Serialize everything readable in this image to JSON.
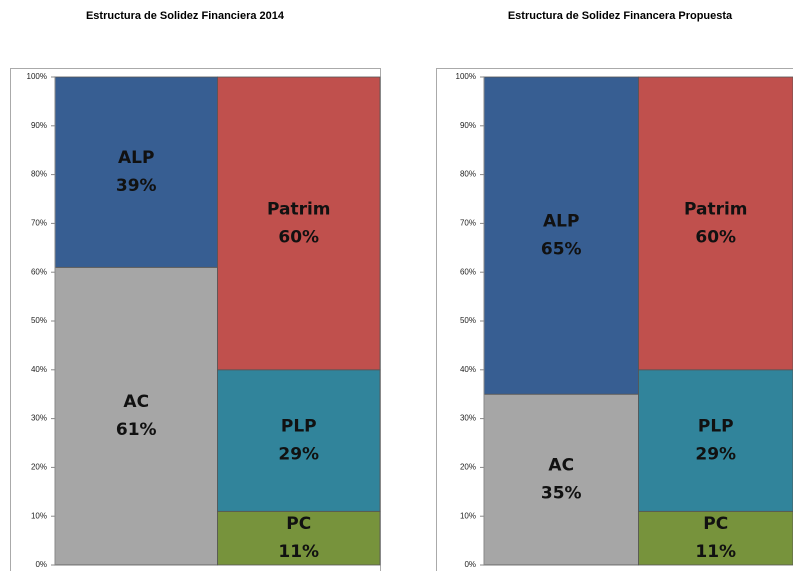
{
  "chart_data": [
    {
      "type": "bar",
      "stacked": true,
      "title": "Estructura de Solidez Financiera 2014",
      "categories": [
        null,
        null
      ],
      "ylim": [
        0,
        100
      ],
      "yticks": [
        {
          "value": 0,
          "label": "0%"
        },
        {
          "value": 10,
          "label": "10%"
        },
        {
          "value": 20,
          "label": "20%"
        },
        {
          "value": 30,
          "label": "30%"
        },
        {
          "value": 40,
          "label": "40%"
        },
        {
          "value": 50,
          "label": "50%"
        },
        {
          "value": 60,
          "label": "60%"
        },
        {
          "value": 70,
          "label": "70%"
        },
        {
          "value": 80,
          "label": "80%"
        },
        {
          "value": 90,
          "label": "90%"
        },
        {
          "value": 100,
          "label": "100%"
        }
      ],
      "series": [
        {
          "name": "AC",
          "color": "#a6a6a6",
          "values": [
            61,
            null
          ],
          "value_labels": [
            "61%",
            null
          ]
        },
        {
          "name": "ALP",
          "color": "#375e92",
          "values": [
            39,
            null
          ],
          "value_labels": [
            "39%",
            null
          ]
        },
        {
          "name": "PC",
          "color": "#77933c",
          "values": [
            null,
            11
          ],
          "value_labels": [
            null,
            "11%"
          ]
        },
        {
          "name": "PLP",
          "color": "#31849b",
          "values": [
            null,
            29
          ],
          "value_labels": [
            null,
            "29%"
          ]
        },
        {
          "name": "Patrim",
          "color": "#c0504d",
          "values": [
            null,
            60
          ],
          "value_labels": [
            null,
            "60%"
          ]
        }
      ]
    },
    {
      "type": "bar",
      "stacked": true,
      "title": "Estructura de Solidez Financera Propuesta",
      "categories": [
        null,
        null
      ],
      "ylim": [
        0,
        100
      ],
      "yticks": [
        {
          "value": 0,
          "label": "0%"
        },
        {
          "value": 10,
          "label": "10%"
        },
        {
          "value": 20,
          "label": "20%"
        },
        {
          "value": 30,
          "label": "30%"
        },
        {
          "value": 40,
          "label": "40%"
        },
        {
          "value": 50,
          "label": "50%"
        },
        {
          "value": 60,
          "label": "60%"
        },
        {
          "value": 70,
          "label": "70%"
        },
        {
          "value": 80,
          "label": "80%"
        },
        {
          "value": 90,
          "label": "90%"
        },
        {
          "value": 100,
          "label": "100%"
        }
      ],
      "series": [
        {
          "name": "AC",
          "color": "#a6a6a6",
          "values": [
            35,
            null
          ],
          "value_labels": [
            "35%",
            null
          ]
        },
        {
          "name": "ALP",
          "color": "#375e92",
          "values": [
            65,
            null
          ],
          "value_labels": [
            "65%",
            null
          ]
        },
        {
          "name": "PC",
          "color": "#77933c",
          "values": [
            null,
            11
          ],
          "value_labels": [
            null,
            "11%"
          ]
        },
        {
          "name": "PLP",
          "color": "#31849b",
          "values": [
            null,
            29
          ],
          "value_labels": [
            null,
            "29%"
          ]
        },
        {
          "name": "Patrim",
          "color": "#c0504d",
          "values": [
            null,
            60
          ],
          "value_labels": [
            null,
            "60%"
          ]
        }
      ]
    }
  ]
}
